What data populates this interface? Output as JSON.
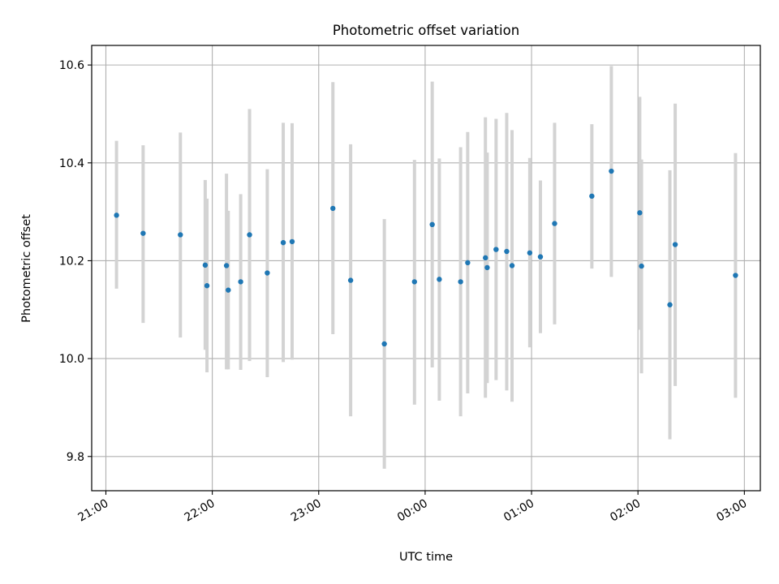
{
  "chart_data": {
    "type": "scatter",
    "title": "Photometric offset variation",
    "xlabel": "UTC time",
    "ylabel": "Photometric offset",
    "x_tick_labels": [
      "21:00",
      "22:00",
      "23:00",
      "00:00",
      "01:00",
      "02:00",
      "03:00"
    ],
    "y_tick_labels": [
      "9.8",
      "10.0",
      "10.2",
      "10.4",
      "10.6"
    ],
    "xlim": [
      "20:52",
      "03:09"
    ],
    "ylim": [
      9.73,
      10.64
    ],
    "grid": true,
    "error_bar_color": "#d3d3d3",
    "point_color": "#1f77b4",
    "points": [
      {
        "t": "21:06",
        "y": 10.293,
        "lo": 10.143,
        "hi": 10.445
      },
      {
        "t": "21:21",
        "y": 10.256,
        "lo": 10.073,
        "hi": 10.436
      },
      {
        "t": "21:42",
        "y": 10.253,
        "lo": 10.043,
        "hi": 10.462
      },
      {
        "t": "21:56",
        "y": 10.191,
        "lo": 10.018,
        "hi": 10.365
      },
      {
        "t": "21:57",
        "y": 10.149,
        "lo": 9.972,
        "hi": 10.327
      },
      {
        "t": "22:08",
        "y": 10.19,
        "lo": 9.978,
        "hi": 10.378
      },
      {
        "t": "22:09",
        "y": 10.14,
        "lo": 9.978,
        "hi": 10.302
      },
      {
        "t": "22:16",
        "y": 10.157,
        "lo": 9.977,
        "hi": 10.336
      },
      {
        "t": "22:21",
        "y": 10.253,
        "lo": 9.995,
        "hi": 10.51
      },
      {
        "t": "22:31",
        "y": 10.175,
        "lo": 9.962,
        "hi": 10.387
      },
      {
        "t": "22:40",
        "y": 10.237,
        "lo": 9.993,
        "hi": 10.482
      },
      {
        "t": "22:45",
        "y": 10.239,
        "lo": 9.998,
        "hi": 10.481
      },
      {
        "t": "23:08",
        "y": 10.307,
        "lo": 10.05,
        "hi": 10.565
      },
      {
        "t": "23:18",
        "y": 10.16,
        "lo": 9.882,
        "hi": 10.438
      },
      {
        "t": "23:37",
        "y": 10.03,
        "lo": 9.775,
        "hi": 10.285
      },
      {
        "t": "23:54",
        "y": 10.157,
        "lo": 9.906,
        "hi": 10.406
      },
      {
        "t": "00:04",
        "y": 10.274,
        "lo": 9.982,
        "hi": 10.566
      },
      {
        "t": "00:08",
        "y": 10.162,
        "lo": 9.914,
        "hi": 10.409
      },
      {
        "t": "00:20",
        "y": 10.157,
        "lo": 9.882,
        "hi": 10.432
      },
      {
        "t": "00:24",
        "y": 10.196,
        "lo": 9.929,
        "hi": 10.463
      },
      {
        "t": "00:34",
        "y": 10.206,
        "lo": 9.92,
        "hi": 10.493
      },
      {
        "t": "00:35",
        "y": 10.186,
        "lo": 9.95,
        "hi": 10.421
      },
      {
        "t": "00:40",
        "y": 10.223,
        "lo": 9.956,
        "hi": 10.49
      },
      {
        "t": "00:46",
        "y": 10.219,
        "lo": 9.935,
        "hi": 10.502
      },
      {
        "t": "00:49",
        "y": 10.19,
        "lo": 9.912,
        "hi": 10.467
      },
      {
        "t": "00:59",
        "y": 10.216,
        "lo": 10.023,
        "hi": 10.41
      },
      {
        "t": "01:05",
        "y": 10.208,
        "lo": 10.052,
        "hi": 10.364
      },
      {
        "t": "01:13",
        "y": 10.276,
        "lo": 10.07,
        "hi": 10.482
      },
      {
        "t": "01:34",
        "y": 10.332,
        "lo": 10.184,
        "hi": 10.479
      },
      {
        "t": "01:45",
        "y": 10.383,
        "lo": 10.167,
        "hi": 10.598
      },
      {
        "t": "02:01",
        "y": 10.298,
        "lo": 10.059,
        "hi": 10.535
      },
      {
        "t": "02:02",
        "y": 10.189,
        "lo": 9.97,
        "hi": 10.407
      },
      {
        "t": "02:18",
        "y": 10.11,
        "lo": 9.835,
        "hi": 10.385
      },
      {
        "t": "02:21",
        "y": 10.233,
        "lo": 9.944,
        "hi": 10.521
      },
      {
        "t": "02:55",
        "y": 10.17,
        "lo": 9.92,
        "hi": 10.42
      }
    ]
  }
}
